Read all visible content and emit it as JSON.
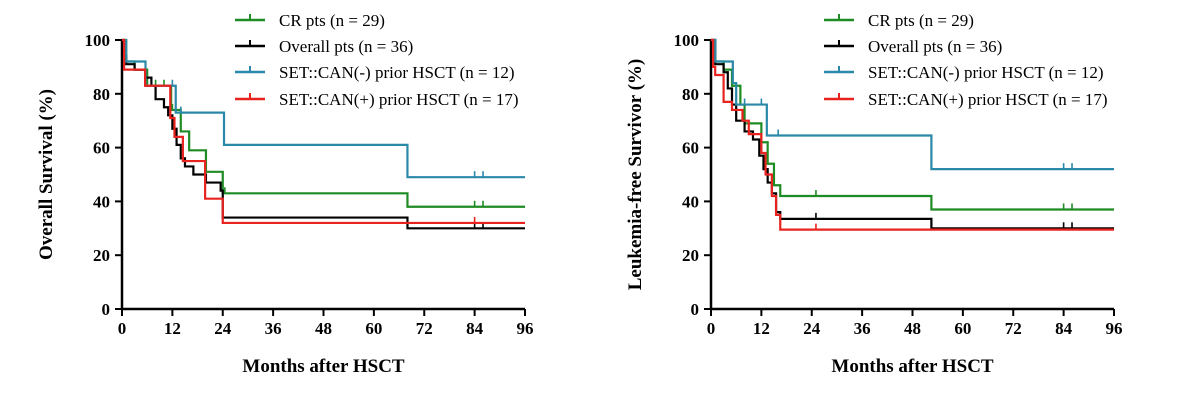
{
  "chart_data": [
    {
      "type": "line",
      "subtype": "kaplan-meier step",
      "xlabel": "Months after HSCT",
      "ylabel": "Overall Survival (%)",
      "xlim": [
        0,
        96
      ],
      "ylim": [
        0,
        100
      ],
      "xticks": [
        0,
        12,
        24,
        36,
        48,
        60,
        72,
        84,
        96
      ],
      "yticks": [
        0,
        20,
        40,
        60,
        80,
        100
      ],
      "legend_position": "top-right",
      "series": [
        {
          "name": "CR pts (n = 29)",
          "color": "#1f8b24",
          "x": [
            0,
            1,
            3,
            6,
            11.7,
            14,
            16,
            20,
            24,
            68,
            96
          ],
          "y": [
            100,
            92,
            89,
            83,
            74,
            66,
            59,
            51,
            43,
            38,
            38
          ],
          "censored": [
            8,
            10,
            12,
            24.5,
            84,
            86
          ]
        },
        {
          "name": "Overall pts (n = 36)",
          "color": "#000000",
          "x": [
            0,
            0.5,
            1,
            3,
            5.5,
            7,
            8,
            10,
            11,
            12,
            13,
            14,
            15,
            17,
            20,
            23.5,
            24,
            68,
            96
          ],
          "y": [
            100,
            94,
            91,
            89,
            86,
            83,
            78,
            75,
            72,
            67,
            61,
            56,
            53,
            50,
            47,
            44,
            34,
            30,
            30
          ],
          "censored": [
            84,
            86
          ]
        },
        {
          "name": "SET::CAN(-) prior HSCT (n = 12)",
          "color": "#2a88a8",
          "x": [
            0,
            1,
            5.6,
            12.8,
            24.3,
            68,
            96
          ],
          "y": [
            100,
            92,
            83,
            73,
            61,
            49,
            49
          ],
          "censored": [
            12,
            14,
            84,
            86
          ]
        },
        {
          "name": "SET::CAN(+) prior HSCT (n = 17)",
          "color": "#e8231f",
          "x": [
            0,
            0.5,
            5.5,
            11.5,
            12.5,
            14.5,
            19.8,
            24,
            96
          ],
          "y": [
            100,
            89,
            83,
            71,
            64,
            55,
            41,
            32,
            32
          ],
          "censored": [
            84
          ]
        }
      ]
    },
    {
      "type": "line",
      "subtype": "kaplan-meier step",
      "xlabel": "Months after HSCT",
      "ylabel": "Leukemia-free Survivor (%)",
      "xlim": [
        0,
        96
      ],
      "ylim": [
        0,
        100
      ],
      "xticks": [
        0,
        12,
        24,
        36,
        48,
        60,
        72,
        84,
        96
      ],
      "yticks": [
        0,
        20,
        40,
        60,
        80,
        100
      ],
      "legend_position": "top-right",
      "series": [
        {
          "name": "CR pts (n = 29)",
          "color": "#1f8b24",
          "x": [
            0,
            1,
            3,
            5,
            7,
            8,
            12,
            13.5,
            15,
            16.5,
            52.5,
            96
          ],
          "y": [
            100,
            92,
            89,
            83,
            76,
            69,
            62,
            54,
            46,
            42,
            37,
            37
          ],
          "censored": [
            25,
            84,
            86
          ]
        },
        {
          "name": "Overall pts (n = 36)",
          "color": "#000000",
          "x": [
            0,
            1,
            3,
            4,
            5,
            6,
            8,
            10,
            11.5,
            12.5,
            13.5,
            14.5,
            15.5,
            16.5,
            52.5,
            96
          ],
          "y": [
            100,
            91,
            88,
            82,
            76,
            70,
            66,
            63,
            57,
            52,
            47,
            43,
            36,
            33.5,
            30,
            30
          ],
          "censored": [
            25,
            84,
            86
          ]
        },
        {
          "name": "SET::CAN(-) prior HSCT (n = 12)",
          "color": "#2a88a8",
          "x": [
            0,
            1,
            5.2,
            6,
            13.3,
            52.5,
            96
          ],
          "y": [
            100,
            92,
            84,
            76,
            64.5,
            52,
            52
          ],
          "censored": [
            8,
            12,
            16,
            84,
            86
          ]
        },
        {
          "name": "SET::CAN(+) prior HSCT (n = 17)",
          "color": "#e8231f",
          "x": [
            0,
            0.5,
            1,
            3,
            5,
            7.5,
            9,
            12,
            13,
            14.5,
            15.5,
            16.5,
            96
          ],
          "y": [
            100,
            90,
            87,
            77,
            74,
            70,
            65,
            58,
            50,
            42,
            35,
            29.5,
            29.5
          ],
          "censored": [
            25
          ]
        }
      ]
    }
  ]
}
